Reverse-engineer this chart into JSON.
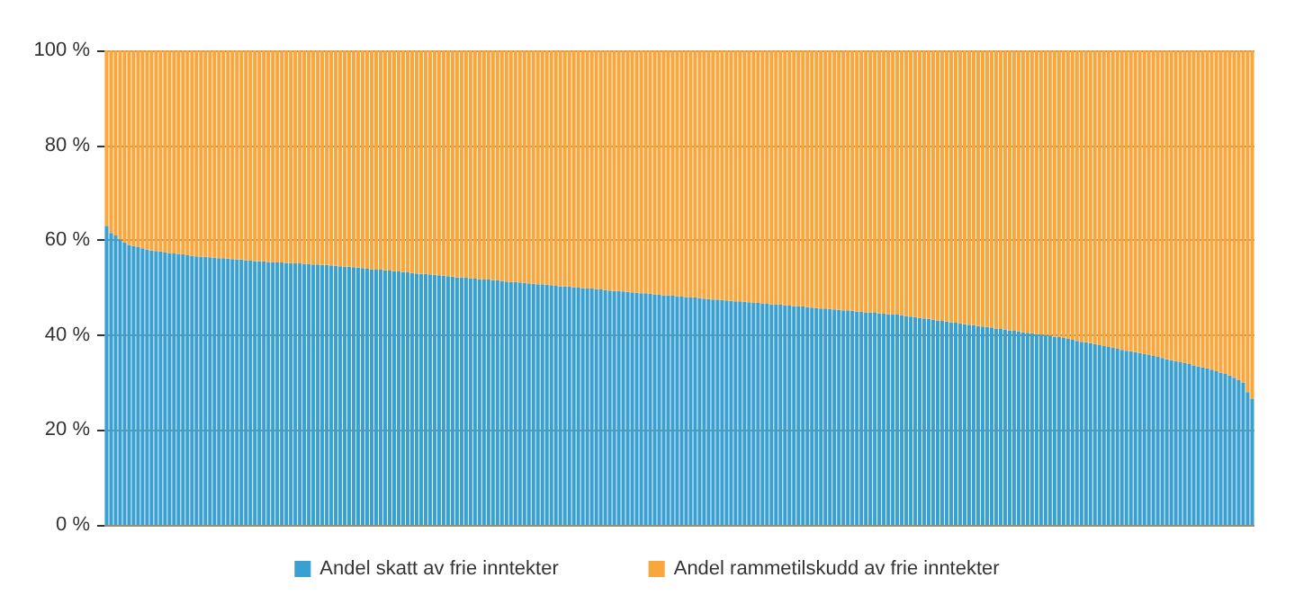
{
  "chart_data": {
    "type": "bar",
    "stacked": true,
    "grid": "y",
    "legend": "bottom",
    "ylim": [
      0,
      100
    ],
    "yticks": [
      {
        "value": 0,
        "label": "0 %"
      },
      {
        "value": 20,
        "label": "20 %"
      },
      {
        "value": 40,
        "label": "40 %"
      },
      {
        "value": 60,
        "label": "60 %"
      },
      {
        "value": 80,
        "label": "80 %"
      },
      {
        "value": 100,
        "label": "100 %"
      }
    ],
    "categories": [
      null,
      null,
      null,
      null,
      null,
      null,
      null,
      null,
      null,
      null,
      null,
      null,
      null,
      null,
      null,
      null,
      null,
      null,
      null,
      null,
      null,
      null,
      null,
      null,
      null,
      null,
      null,
      null,
      null,
      null,
      null,
      null,
      null,
      null,
      null,
      null,
      null,
      null,
      null,
      null,
      null,
      null,
      null,
      null,
      null,
      null,
      null,
      null,
      null,
      null,
      null,
      null,
      null,
      null,
      null,
      null,
      null,
      null,
      null,
      null,
      null,
      null,
      null,
      null,
      null,
      null,
      null,
      null,
      null,
      null,
      null,
      null,
      null,
      null,
      null,
      null,
      null,
      null,
      null,
      null,
      null,
      null,
      null,
      null,
      null,
      null,
      null,
      null,
      null,
      null,
      null,
      null,
      null,
      null,
      null,
      null,
      null,
      null,
      null,
      null,
      null,
      null,
      null,
      null,
      null,
      null,
      null,
      null,
      null,
      null,
      null,
      null,
      null,
      null,
      null,
      null,
      null,
      null,
      null,
      null,
      null,
      null,
      null,
      null,
      null,
      null,
      null,
      null,
      null,
      null,
      null,
      null,
      null,
      null,
      null,
      null,
      null,
      null,
      null,
      null,
      null,
      null,
      null,
      null,
      null,
      null,
      null,
      null,
      null,
      null,
      null,
      null,
      null,
      null,
      null,
      null,
      null,
      null,
      null,
      null,
      null,
      null,
      null,
      null,
      null,
      null,
      null,
      null,
      null,
      null,
      null,
      null,
      null,
      null,
      null,
      null,
      null,
      null,
      null,
      null,
      null,
      null,
      null,
      null,
      null,
      null,
      null,
      null,
      null,
      null,
      null,
      null,
      null,
      null,
      null,
      null,
      null,
      null,
      null,
      null,
      null,
      null,
      null,
      null,
      null,
      null,
      null,
      null,
      null,
      null,
      null,
      null,
      null,
      null,
      null,
      null,
      null,
      null,
      null,
      null,
      null,
      null,
      null,
      null,
      null,
      null,
      null,
      null,
      null,
      null,
      null,
      null,
      null,
      null,
      null,
      null,
      null,
      null,
      null,
      null,
      null,
      null,
      null,
      null,
      null,
      null,
      null,
      null,
      null,
      null,
      null,
      null,
      null,
      null,
      null,
      null
    ],
    "series": [
      {
        "name": "Andel skatt av frie inntekter",
        "color": "#3a9fd1",
        "values": [
          63.0,
          61.5,
          61.0,
          60.2,
          59.5,
          59.0,
          58.8,
          58.5,
          58.3,
          58.0,
          57.8,
          57.7,
          57.6,
          57.4,
          57.3,
          57.2,
          57.1,
          57.0,
          56.8,
          56.7,
          56.6,
          56.5,
          56.5,
          56.4,
          56.3,
          56.2,
          56.2,
          56.1,
          56.0,
          55.9,
          55.9,
          55.8,
          55.7,
          55.6,
          55.6,
          55.5,
          55.4,
          55.4,
          55.3,
          55.3,
          55.2,
          55.2,
          55.1,
          55.1,
          55.0,
          55.0,
          54.9,
          54.9,
          54.8,
          54.8,
          54.7,
          54.6,
          54.5,
          54.4,
          54.4,
          54.3,
          54.2,
          54.1,
          54.0,
          53.9,
          53.8,
          53.8,
          53.7,
          53.6,
          53.5,
          53.4,
          53.3,
          53.2,
          53.1,
          53.0,
          52.9,
          52.9,
          52.8,
          52.7,
          52.6,
          52.5,
          52.4,
          52.3,
          52.2,
          52.2,
          52.1,
          52.0,
          51.9,
          51.8,
          51.7,
          51.7,
          51.6,
          51.5,
          51.4,
          51.3,
          51.2,
          51.2,
          51.1,
          51.0,
          50.9,
          50.8,
          50.7,
          50.7,
          50.6,
          50.5,
          50.4,
          50.3,
          50.3,
          50.2,
          50.1,
          50.0,
          49.9,
          49.8,
          49.8,
          49.7,
          49.6,
          49.5,
          49.4,
          49.3,
          49.3,
          49.2,
          49.1,
          49.0,
          48.9,
          48.8,
          48.8,
          48.7,
          48.6,
          48.5,
          48.4,
          48.4,
          48.3,
          48.2,
          48.1,
          48.0,
          47.9,
          47.9,
          47.8,
          47.7,
          47.6,
          47.5,
          47.5,
          47.4,
          47.3,
          47.2,
          47.1,
          47.1,
          47.0,
          46.9,
          46.8,
          46.8,
          46.7,
          46.6,
          46.5,
          46.4,
          46.4,
          46.3,
          46.2,
          46.1,
          46.0,
          46.0,
          45.9,
          45.8,
          45.7,
          45.6,
          45.6,
          45.5,
          45.4,
          45.3,
          45.2,
          45.2,
          45.1,
          45.0,
          44.9,
          44.8,
          44.8,
          44.7,
          44.6,
          44.5,
          44.4,
          44.4,
          44.3,
          44.2,
          44.0,
          43.9,
          43.8,
          43.6,
          43.5,
          43.4,
          43.3,
          43.1,
          43.0,
          42.9,
          42.7,
          42.6,
          42.5,
          42.3,
          42.2,
          42.1,
          41.9,
          41.8,
          41.7,
          41.6,
          41.4,
          41.3,
          41.2,
          41.0,
          40.9,
          40.8,
          40.6,
          40.5,
          40.4,
          40.2,
          40.1,
          40.0,
          39.9,
          39.7,
          39.6,
          39.4,
          39.2,
          39.0,
          38.8,
          38.6,
          38.5,
          38.3,
          38.1,
          37.9,
          37.7,
          37.5,
          37.3,
          37.1,
          36.9,
          36.7,
          36.6,
          36.4,
          36.2,
          36.0,
          35.8,
          35.6,
          35.4,
          35.2,
          34.9,
          34.7,
          34.5,
          34.3,
          34.1,
          33.9,
          33.6,
          33.4,
          33.2,
          33.0,
          32.7,
          32.4,
          32.1,
          31.8,
          31.5,
          31.0,
          30.5,
          30.0,
          28.0,
          26.5
        ]
      },
      {
        "name": "Andel rammetilskudd av frie inntekter",
        "color": "#f9a63c",
        "values": [
          37.0,
          38.5,
          39.0,
          39.8,
          40.5,
          41.0,
          41.2,
          41.5,
          41.7,
          42.0,
          42.2,
          42.3,
          42.4,
          42.6,
          42.7,
          42.8,
          42.9,
          43.0,
          43.2,
          43.3,
          43.4,
          43.5,
          43.5,
          43.6,
          43.7,
          43.8,
          43.8,
          43.9,
          44.0,
          44.1,
          44.1,
          44.2,
          44.3,
          44.4,
          44.4,
          44.5,
          44.6,
          44.6,
          44.7,
          44.7,
          44.8,
          44.8,
          44.9,
          44.9,
          45.0,
          45.0,
          45.1,
          45.1,
          45.2,
          45.2,
          45.3,
          45.4,
          45.5,
          45.6,
          45.6,
          45.7,
          45.8,
          45.9,
          46.0,
          46.1,
          46.2,
          46.2,
          46.3,
          46.4,
          46.5,
          46.6,
          46.7,
          46.8,
          46.9,
          47.0,
          47.1,
          47.1,
          47.2,
          47.3,
          47.4,
          47.5,
          47.6,
          47.7,
          47.8,
          47.8,
          47.9,
          48.0,
          48.1,
          48.2,
          48.3,
          48.3,
          48.4,
          48.5,
          48.6,
          48.7,
          48.8,
          48.8,
          48.9,
          49.0,
          49.1,
          49.2,
          49.3,
          49.3,
          49.4,
          49.5,
          49.6,
          49.7,
          49.7,
          49.8,
          49.9,
          50.0,
          50.1,
          50.2,
          50.2,
          50.3,
          50.4,
          50.5,
          50.6,
          50.7,
          50.7,
          50.8,
          50.9,
          51.0,
          51.1,
          51.2,
          51.2,
          51.3,
          51.4,
          51.5,
          51.6,
          51.6,
          51.7,
          51.8,
          51.9,
          52.0,
          52.1,
          52.1,
          52.2,
          52.3,
          52.4,
          52.5,
          52.5,
          52.6,
          52.7,
          52.8,
          52.9,
          52.9,
          53.0,
          53.1,
          53.2,
          53.2,
          53.3,
          53.4,
          53.5,
          53.6,
          53.6,
          53.7,
          53.8,
          53.9,
          54.0,
          54.0,
          54.1,
          54.2,
          54.3,
          54.4,
          54.4,
          54.5,
          54.6,
          54.7,
          54.8,
          54.8,
          54.9,
          55.0,
          55.1,
          55.2,
          55.2,
          55.3,
          55.4,
          55.5,
          55.6,
          55.6,
          55.7,
          55.8,
          56.0,
          56.1,
          56.2,
          56.4,
          56.5,
          56.6,
          56.7,
          56.9,
          57.0,
          57.1,
          57.3,
          57.4,
          57.5,
          57.7,
          57.8,
          57.9,
          58.1,
          58.2,
          58.3,
          58.4,
          58.6,
          58.7,
          58.8,
          59.0,
          59.1,
          59.2,
          59.4,
          59.5,
          59.6,
          59.8,
          59.9,
          60.0,
          60.1,
          60.3,
          60.4,
          60.6,
          60.8,
          61.0,
          61.2,
          61.4,
          61.5,
          61.7,
          61.9,
          62.1,
          62.3,
          62.5,
          62.7,
          62.9,
          63.1,
          63.3,
          63.4,
          63.6,
          63.8,
          64.0,
          64.2,
          64.4,
          64.6,
          64.8,
          65.1,
          65.3,
          65.5,
          65.7,
          65.9,
          66.1,
          66.4,
          66.6,
          66.8,
          67.0,
          67.3,
          67.6,
          67.9,
          68.2,
          68.5,
          69.0,
          69.5,
          70.0,
          72.0,
          73.5
        ]
      }
    ]
  }
}
